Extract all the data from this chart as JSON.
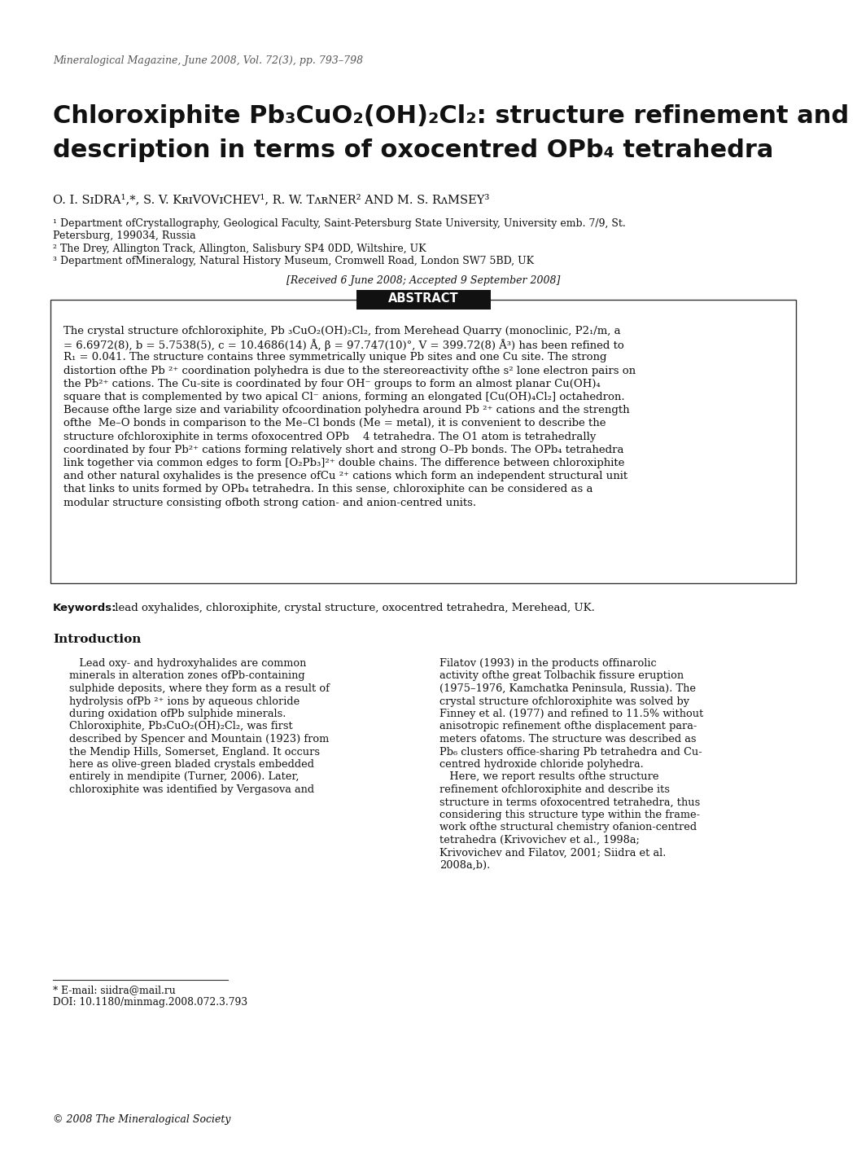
{
  "journal_line": "Mineralogical Magazine, June 2008, Vol. 72(3), pp. 793–798",
  "title_line1": "Chloroxiphite Pb₃CuO₂(OH)₂Cl₂: structure refinement and",
  "title_line2": "description in terms of oxocentred OPb₄ tetrahedra",
  "authors_display": "O. I. SɪDRA¹,*, S. V. KʀɪVOVɪCHEV¹, R. W. TʌʀNER² AND M. S. RʌMSEY³",
  "affil1a": "¹ Department ofCrystallography, Geological Faculty, Saint-Petersburg State University, University emb. 7/9, St.",
  "affil1b": "Petersburg, 199034, Russia",
  "affil2": "² The Drey, Allington Track, Allington, Salisbury SP4 0DD, Wiltshire, UK",
  "affil3": "³ Department ofMineralogy, Natural History Museum, Cromwell Road, London SW7 5BD, UK",
  "received": "[Received 6 June 2008; Accepted 9 September 2008]",
  "abstract_title": "ABSTRACT",
  "abstract_lines": [
    "The crystal structure ofchloroxiphite, Pb ₃CuO₂(OH)₂Cl₂, from Merehead Quarry (monoclinic, P2₁/m, a",
    "= 6.6972(8), b = 5.7538(5), c = 10.4686(14) Å, β = 97.747(10)°, V = 399.72(8) Å³) has been refined to",
    "R₁ = 0.041. The structure contains three symmetrically unique Pb sites and one Cu site. The strong",
    "distortion ofthe Pb ²⁺ coordination polyhedra is due to the stereoreactivity ofthe s² lone electron pairs on",
    "the Pb²⁺ cations. The Cu-site is coordinated by four OH⁻ groups to form an almost planar Cu(OH)₄",
    "square that is complemented by two apical Cl⁻ anions, forming an elongated [Cu(OH)₄Cl₂] octahedron.",
    "Because ofthe large size and variability ofcoordination polyhedra around Pb ²⁺ cations and the strength",
    "ofthe  Me–O bonds in comparison to the Me–Cl bonds (Me = metal), it is convenient to describe the",
    "structure ofchloroxiphite in terms ofoxocentred OPb    4 tetrahedra. The O1 atom is tetrahedrally",
    "coordinated by four Pb²⁺ cations forming relatively short and strong O–Pb bonds. The OPb₄ tetrahedra",
    "link together via common edges to form [O₂Pb₃]²⁺ double chains. The difference between chloroxiphite",
    "and other natural oxyhalides is the presence ofCu ²⁺ cations which form an independent structural unit",
    "that links to units formed by OPb₄ tetrahedra. In this sense, chloroxiphite can be considered as a",
    "modular structure consisting ofboth strong cation- and anion-centred units."
  ],
  "keywords_label": "Keywords:",
  "keywords_text": " lead oxyhalides, chloroxiphite, crystal structure, oxocentred tetrahedra, Merehead, UK.",
  "intro_title": "Introduction",
  "intro_col1_lines": [
    "   Lead oxy- and hydroxyhalides are common",
    "minerals in alteration zones ofPb-containing",
    "sulphide deposits, where they form as a result of",
    "hydrolysis ofPb ²⁺ ions by aqueous chloride",
    "during oxidation ofPb sulphide minerals.",
    "Chloroxiphite, Pb₃CuO₂(OH)₂Cl₂, was first",
    "described by Spencer and Mountain (1923) from",
    "the Mendip Hills, Somerset, England. It occurs",
    "here as olive-green bladed crystals embedded",
    "entirely in mendipite (Turner, 2006). Later,",
    "chloroxiphite was identified by Vergasova and"
  ],
  "intro_col2_lines": [
    "Filatov (1993) in the products offinarolic",
    "activity ofthe great Tolbachik fissure eruption",
    "(1975–1976, Kamchatka Peninsula, Russia). The",
    "crystal structure ofchloroxiphite was solved by",
    "Finney et al. (1977) and refined to 11.5% without",
    "anisotropic refinement ofthe displacement para-",
    "meters ofatoms. The structure was described as",
    "Pb₆ clusters office-sharing Pb tetrahedra and Cu-",
    "centred hydroxide chloride polyhedra.",
    "   Here, we report results ofthe structure",
    "refinement ofchloroxiphite and describe its",
    "structure in terms ofoxocentred tetrahedra, thus",
    "considering this structure type within the frame-",
    "work ofthe structural chemistry ofanion-centred",
    "tetrahedra (Krivovichev et al., 1998a;",
    "Krivovichev and Filatov, 2001; Siidra et al.",
    "2008a,b)."
  ],
  "footnote1": "* E-mail: siidra@mail.ru",
  "footnote2": "DOI: 10.1180/minmag.2008.072.3.793",
  "copyright": "© 2008 The Mineralogical Society",
  "bg_color": "#ffffff",
  "text_color": "#000000"
}
